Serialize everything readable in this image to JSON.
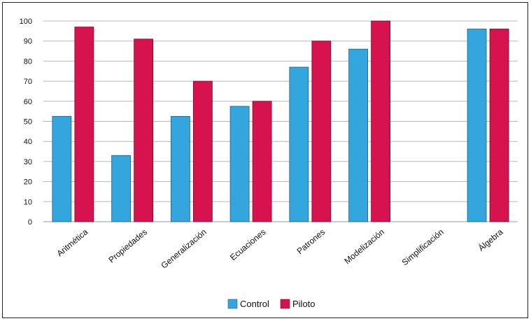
{
  "chart_data": {
    "type": "bar",
    "categories": [
      "Aritmética",
      "Propiedades",
      "Generalización",
      "Ecuaciones",
      "Patrones",
      "Modelización",
      "Simplificación",
      "Álgebra"
    ],
    "series": [
      {
        "name": "Control",
        "values": [
          52.5,
          33,
          52.5,
          57.5,
          77,
          86,
          null,
          96
        ],
        "color": "#33a6de"
      },
      {
        "name": "Piloto",
        "values": [
          97,
          91,
          70,
          60,
          90,
          100,
          null,
          96
        ],
        "color": "#d6124f"
      }
    ],
    "ylim": [
      0,
      100
    ],
    "yticks": [
      0,
      10,
      20,
      30,
      40,
      50,
      60,
      70,
      80,
      90,
      100
    ],
    "grid": true,
    "legend": "bottom-center",
    "title": "",
    "xlabel": "",
    "ylabel": ""
  }
}
